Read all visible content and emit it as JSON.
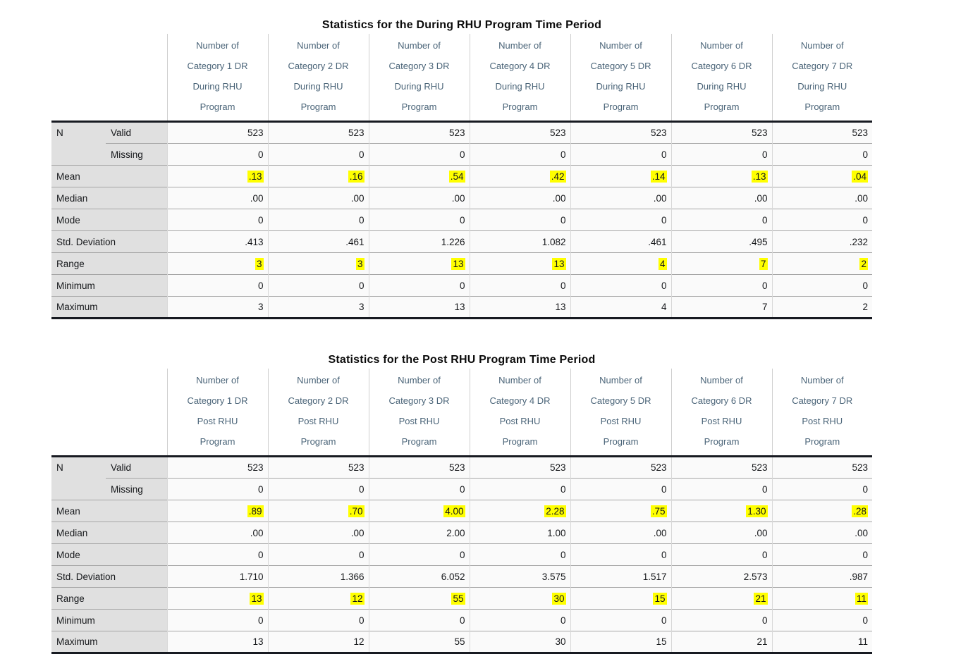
{
  "styles": {
    "highlight_color": "#ffff00",
    "header_text_color": "#4a6478",
    "label_background": "#e0e0e0",
    "cell_background": "#fafafa"
  },
  "tables": [
    {
      "title": "Statistics for the During RHU Program Time Period",
      "column_headers": [
        "Number of\nCategory 1 DR\nDuring RHU\nProgram",
        "Number of\nCategory 2 DR\nDuring RHU\nProgram",
        "Number of\nCategory 3 DR\nDuring RHU\nProgram",
        "Number of\nCategory 4 DR\nDuring RHU\nProgram",
        "Number of\nCategory 5 DR\nDuring RHU\nProgram",
        "Number of\nCategory 6 DR\nDuring RHU\nProgram",
        "Number of\nCategory 7 DR\nDuring RHU\nProgram"
      ],
      "rows": [
        {
          "label": "N",
          "sublabel": "Valid",
          "values": [
            "523",
            "523",
            "523",
            "523",
            "523",
            "523",
            "523"
          ],
          "highlight": false
        },
        {
          "label": "",
          "sublabel": "Missing",
          "values": [
            "0",
            "0",
            "0",
            "0",
            "0",
            "0",
            "0"
          ],
          "highlight": false
        },
        {
          "label": "Mean",
          "values": [
            ".13",
            ".16",
            ".54",
            ".42",
            ".14",
            ".13",
            ".04"
          ],
          "highlight": true
        },
        {
          "label": "Median",
          "values": [
            ".00",
            ".00",
            ".00",
            ".00",
            ".00",
            ".00",
            ".00"
          ],
          "highlight": false
        },
        {
          "label": "Mode",
          "values": [
            "0",
            "0",
            "0",
            "0",
            "0",
            "0",
            "0"
          ],
          "highlight": false
        },
        {
          "label": "Std. Deviation",
          "values": [
            ".413",
            ".461",
            "1.226",
            "1.082",
            ".461",
            ".495",
            ".232"
          ],
          "highlight": false
        },
        {
          "label": "Range",
          "values": [
            "3",
            "3",
            "13",
            "13",
            "4",
            "7",
            "2"
          ],
          "highlight": true
        },
        {
          "label": "Minimum",
          "values": [
            "0",
            "0",
            "0",
            "0",
            "0",
            "0",
            "0"
          ],
          "highlight": false
        },
        {
          "label": "Maximum",
          "values": [
            "3",
            "3",
            "13",
            "13",
            "4",
            "7",
            "2"
          ],
          "highlight": false
        }
      ]
    },
    {
      "title": "Statistics for the Post RHU Program Time Period",
      "column_headers": [
        "Number of\nCategory 1 DR\nPost RHU\nProgram",
        "Number of\nCategory 2 DR\nPost RHU\nProgram",
        "Number of\nCategory 3 DR\nPost RHU\nProgram",
        "Number of\nCategory 4 DR\nPost RHU\nProgram",
        "Number of\nCategory 5 DR\nPost RHU\nProgram",
        "Number of\nCategory 6 DR\nPost RHU\nProgram",
        "Number of\nCategory 7 DR\nPost RHU\nProgram"
      ],
      "rows": [
        {
          "label": "N",
          "sublabel": "Valid",
          "values": [
            "523",
            "523",
            "523",
            "523",
            "523",
            "523",
            "523"
          ],
          "highlight": false
        },
        {
          "label": "",
          "sublabel": "Missing",
          "values": [
            "0",
            "0",
            "0",
            "0",
            "0",
            "0",
            "0"
          ],
          "highlight": false
        },
        {
          "label": "Mean",
          "values": [
            ".89",
            ".70",
            "4.00",
            "2.28",
            ".75",
            "1.30",
            ".28"
          ],
          "highlight": true
        },
        {
          "label": "Median",
          "values": [
            ".00",
            ".00",
            "2.00",
            "1.00",
            ".00",
            ".00",
            ".00"
          ],
          "highlight": false
        },
        {
          "label": "Mode",
          "values": [
            "0",
            "0",
            "0",
            "0",
            "0",
            "0",
            "0"
          ],
          "highlight": false
        },
        {
          "label": "Std. Deviation",
          "values": [
            "1.710",
            "1.366",
            "6.052",
            "3.575",
            "1.517",
            "2.573",
            ".987"
          ],
          "highlight": false
        },
        {
          "label": "Range",
          "values": [
            "13",
            "12",
            "55",
            "30",
            "15",
            "21",
            "11"
          ],
          "highlight": true
        },
        {
          "label": "Minimum",
          "values": [
            "0",
            "0",
            "0",
            "0",
            "0",
            "0",
            "0"
          ],
          "highlight": false
        },
        {
          "label": "Maximum",
          "values": [
            "13",
            "12",
            "55",
            "30",
            "15",
            "21",
            "11"
          ],
          "highlight": false
        }
      ]
    }
  ]
}
